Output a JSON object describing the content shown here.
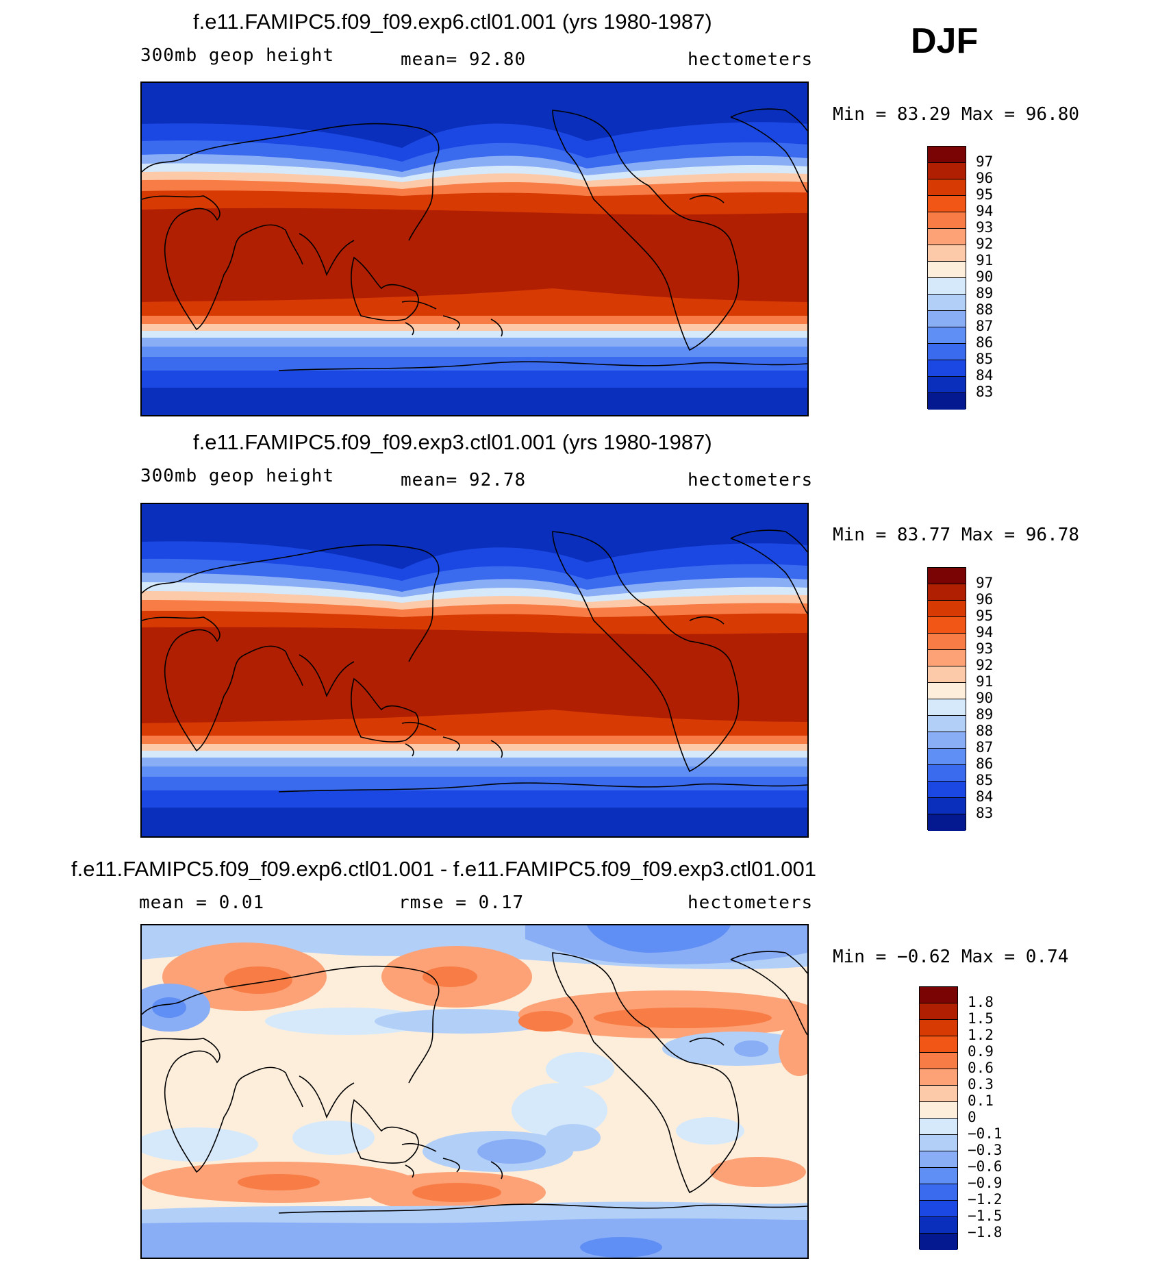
{
  "season": "DJF",
  "panels": [
    {
      "title": "f.e11.FAMIPC5.f09_f09.exp6.ctl01.001 (yrs 1980-1987)",
      "variable": "300mb geop height",
      "stat_text": "mean=   92.80",
      "units": "hectometers",
      "minmax": "Min =   83.29 Max =   96.80",
      "colorbar": {
        "labels": [
          "97",
          "96",
          "95",
          "94",
          "93",
          "92",
          "91",
          "90",
          "89",
          "88",
          "87",
          "86",
          "85",
          "84",
          "83"
        ],
        "colors": [
          "#7a0403",
          "#b01f02",
          "#d83a04",
          "#f25616",
          "#f87c45",
          "#fca276",
          "#fdcaa9",
          "#fdeedc",
          "#d6e9fb",
          "#b2cff8",
          "#8aaef6",
          "#5f8ef4",
          "#3a6bef",
          "#1b48e3",
          "#0b2fbd",
          "#04188f"
        ]
      }
    },
    {
      "title": "f.e11.FAMIPC5.f09_f09.exp3.ctl01.001 (yrs 1980-1987)",
      "variable": "300mb geop height",
      "stat_text": "mean=   92.78",
      "units": "hectometers",
      "minmax": "Min =   83.77 Max =   96.78",
      "colorbar": {
        "labels": [
          "97",
          "96",
          "95",
          "94",
          "93",
          "92",
          "91",
          "90",
          "89",
          "88",
          "87",
          "86",
          "85",
          "84",
          "83"
        ],
        "colors": [
          "#7a0403",
          "#b01f02",
          "#d83a04",
          "#f25616",
          "#f87c45",
          "#fca276",
          "#fdcaa9",
          "#fdeedc",
          "#d6e9fb",
          "#b2cff8",
          "#8aaef6",
          "#5f8ef4",
          "#3a6bef",
          "#1b48e3",
          "#0b2fbd",
          "#04188f"
        ]
      }
    },
    {
      "title": "f.e11.FAMIPC5.f09_f09.exp6.ctl01.001 - f.e11.FAMIPC5.f09_f09.exp3.ctl01.001",
      "stat_mean": "mean =    0.01",
      "stat_rmse": "rmse =    0.17",
      "units": "hectometers",
      "minmax": "Min =  −0.62 Max =    0.74",
      "colorbar": {
        "labels": [
          "1.8",
          "1.5",
          "1.2",
          "0.9",
          "0.6",
          "0.3",
          "0.1",
          "0",
          "−0.1",
          "−0.3",
          "−0.6",
          "−0.9",
          "−1.2",
          "−1.5",
          "−1.8"
        ],
        "colors": [
          "#7a0403",
          "#b01f02",
          "#d83a04",
          "#f25616",
          "#f87c45",
          "#fca276",
          "#fdcaa9",
          "#fdeedc",
          "#d6e9fb",
          "#b2cff8",
          "#8aaef6",
          "#5f8ef4",
          "#3a6bef",
          "#1b48e3",
          "#0b2fbd",
          "#04188f"
        ]
      }
    }
  ]
}
